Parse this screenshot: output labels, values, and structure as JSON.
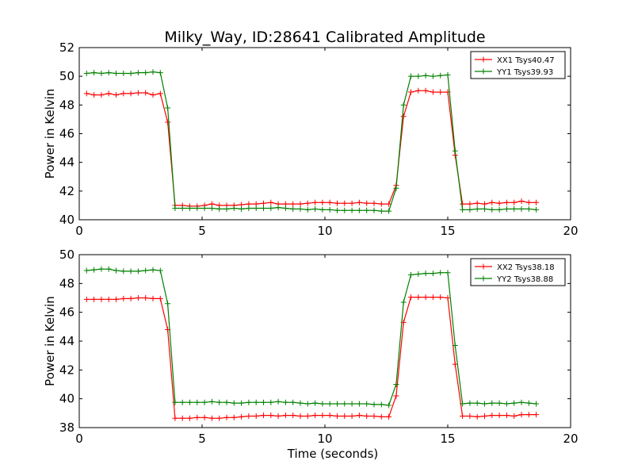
{
  "title": "Milky_Way, ID:28641 Calibrated Amplitude",
  "colors": {
    "xx": "#ff0000",
    "yy": "#008000",
    "axes": "#000000",
    "background": "#ffffff"
  },
  "chart_data": [
    {
      "type": "line",
      "title": "Milky_Way, ID:28641 Calibrated Amplitude",
      "xlabel": "",
      "ylabel": "Power in Kelvin",
      "xlim": [
        0,
        20
      ],
      "ylim": [
        40,
        52
      ],
      "xticks": [
        "0",
        "5",
        "10",
        "15",
        "20"
      ],
      "yticks": [
        "40",
        "42",
        "44",
        "46",
        "48",
        "50",
        "52"
      ],
      "grid": false,
      "legend_position": "top-right",
      "x": [
        0.3,
        0.6,
        0.9,
        1.2,
        1.5,
        1.8,
        2.1,
        2.4,
        2.7,
        3.0,
        3.3,
        3.6,
        3.9,
        4.2,
        4.5,
        4.8,
        5.1,
        5.4,
        5.7,
        6.0,
        6.3,
        6.6,
        6.9,
        7.2,
        7.5,
        7.8,
        8.1,
        8.4,
        8.7,
        9.0,
        9.3,
        9.6,
        9.9,
        10.2,
        10.5,
        10.8,
        11.1,
        11.4,
        11.7,
        12.0,
        12.3,
        12.6,
        12.9,
        13.2,
        13.5,
        13.8,
        14.1,
        14.4,
        14.7,
        15.0,
        15.3,
        15.6,
        15.9,
        16.2,
        16.5,
        16.8,
        17.1,
        17.4,
        17.7,
        18.0,
        18.3,
        18.6
      ],
      "series": [
        {
          "name": "XX1 Tsys40.47",
          "color": "#ff0000",
          "values": [
            48.8,
            48.7,
            48.7,
            48.8,
            48.7,
            48.8,
            48.8,
            48.85,
            48.85,
            48.7,
            48.8,
            46.8,
            41.0,
            41.0,
            40.95,
            40.95,
            41.0,
            41.1,
            41.0,
            41.0,
            41.0,
            41.05,
            41.1,
            41.1,
            41.15,
            41.2,
            41.1,
            41.1,
            41.1,
            41.1,
            41.15,
            41.2,
            41.2,
            41.2,
            41.15,
            41.15,
            41.15,
            41.2,
            41.15,
            41.15,
            41.1,
            41.1,
            42.4,
            47.2,
            48.9,
            49.0,
            49.0,
            48.9,
            48.9,
            48.9,
            44.5,
            41.1,
            41.1,
            41.15,
            41.1,
            41.2,
            41.15,
            41.2,
            41.2,
            41.3,
            41.2,
            41.2
          ]
        },
        {
          "name": "YY1 Tsys39.93",
          "color": "#008000",
          "values": [
            50.2,
            50.25,
            50.2,
            50.25,
            50.2,
            50.2,
            50.2,
            50.25,
            50.25,
            50.3,
            50.25,
            47.8,
            40.8,
            40.8,
            40.8,
            40.8,
            40.8,
            40.8,
            40.75,
            40.75,
            40.8,
            40.75,
            40.8,
            40.8,
            40.8,
            40.8,
            40.85,
            40.8,
            40.75,
            40.75,
            40.7,
            40.75,
            40.7,
            40.7,
            40.65,
            40.65,
            40.65,
            40.65,
            40.65,
            40.65,
            40.6,
            40.6,
            42.2,
            48.0,
            50.0,
            50.0,
            50.05,
            50.0,
            50.05,
            50.1,
            44.8,
            40.7,
            40.7,
            40.75,
            40.75,
            40.7,
            40.7,
            40.75,
            40.75,
            40.75,
            40.75,
            40.7
          ]
        }
      ]
    },
    {
      "type": "line",
      "title": "",
      "xlabel": "Time (seconds)",
      "ylabel": "Power in Kelvin",
      "xlim": [
        0,
        20
      ],
      "ylim": [
        38,
        50
      ],
      "xticks": [
        "0",
        "5",
        "10",
        "15",
        "20"
      ],
      "yticks": [
        "38",
        "40",
        "42",
        "44",
        "46",
        "48",
        "50"
      ],
      "grid": false,
      "legend_position": "top-right",
      "x": [
        0.3,
        0.6,
        0.9,
        1.2,
        1.5,
        1.8,
        2.1,
        2.4,
        2.7,
        3.0,
        3.3,
        3.6,
        3.9,
        4.2,
        4.5,
        4.8,
        5.1,
        5.4,
        5.7,
        6.0,
        6.3,
        6.6,
        6.9,
        7.2,
        7.5,
        7.8,
        8.1,
        8.4,
        8.7,
        9.0,
        9.3,
        9.6,
        9.9,
        10.2,
        10.5,
        10.8,
        11.1,
        11.4,
        11.7,
        12.0,
        12.3,
        12.6,
        12.9,
        13.2,
        13.5,
        13.8,
        14.1,
        14.4,
        14.7,
        15.0,
        15.3,
        15.6,
        15.9,
        16.2,
        16.5,
        16.8,
        17.1,
        17.4,
        17.7,
        18.0,
        18.3,
        18.6
      ],
      "series": [
        {
          "name": "XX2 Tsys38.18",
          "color": "#ff0000",
          "values": [
            46.9,
            46.9,
            46.9,
            46.9,
            46.9,
            46.95,
            46.95,
            47.0,
            47.0,
            46.95,
            46.95,
            44.8,
            38.65,
            38.65,
            38.65,
            38.7,
            38.7,
            38.65,
            38.65,
            38.7,
            38.7,
            38.75,
            38.8,
            38.8,
            38.85,
            38.85,
            38.8,
            38.85,
            38.85,
            38.8,
            38.8,
            38.85,
            38.85,
            38.85,
            38.8,
            38.8,
            38.8,
            38.85,
            38.8,
            38.8,
            38.75,
            38.75,
            40.2,
            45.3,
            47.05,
            47.05,
            47.05,
            47.05,
            47.05,
            47.0,
            42.4,
            38.8,
            38.8,
            38.75,
            38.8,
            38.85,
            38.85,
            38.85,
            38.8,
            38.9,
            38.9,
            38.9
          ]
        },
        {
          "name": "YY2 Tsys38.88",
          "color": "#008000",
          "values": [
            48.9,
            48.95,
            49.0,
            49.0,
            48.9,
            48.85,
            48.85,
            48.85,
            48.9,
            48.95,
            48.9,
            46.6,
            39.75,
            39.75,
            39.75,
            39.75,
            39.75,
            39.8,
            39.75,
            39.75,
            39.7,
            39.7,
            39.75,
            39.75,
            39.75,
            39.75,
            39.8,
            39.75,
            39.75,
            39.7,
            39.65,
            39.7,
            39.65,
            39.65,
            39.65,
            39.65,
            39.65,
            39.65,
            39.65,
            39.6,
            39.6,
            39.55,
            41.0,
            46.7,
            48.6,
            48.65,
            48.7,
            48.7,
            48.75,
            48.75,
            43.7,
            39.65,
            39.7,
            39.7,
            39.65,
            39.7,
            39.7,
            39.65,
            39.7,
            39.75,
            39.7,
            39.65
          ]
        }
      ]
    }
  ]
}
